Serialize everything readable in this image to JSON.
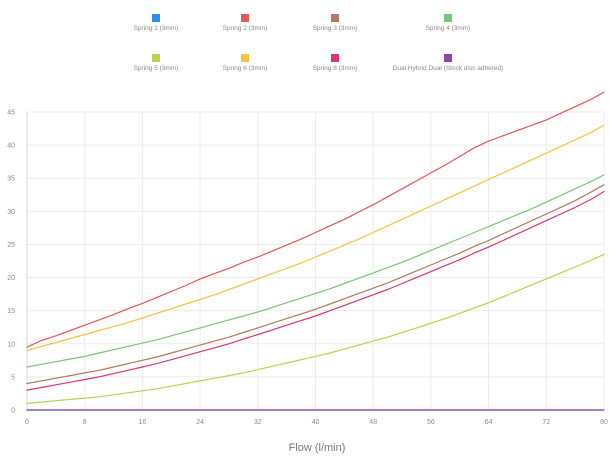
{
  "chart_data": {
    "type": "line",
    "title": "",
    "xlabel": "Flow (l/min)",
    "ylabel": "",
    "xlim": [
      0,
      80
    ],
    "ylim": [
      0,
      45
    ],
    "x_ticks": [
      0,
      8,
      16,
      24,
      32,
      40,
      48,
      56,
      64,
      72,
      80
    ],
    "y_ticks": [
      0,
      5,
      10,
      15,
      20,
      25,
      30,
      35,
      40,
      45
    ],
    "grid": true,
    "legend_position": "top",
    "x": [
      0,
      2,
      4,
      6,
      8,
      10,
      12,
      14,
      16,
      18,
      20,
      22,
      24,
      26,
      28,
      30,
      32,
      34,
      36,
      38,
      40,
      42,
      44,
      46,
      48,
      50,
      52,
      54,
      56,
      58,
      60,
      62,
      64,
      66,
      68,
      70,
      72,
      74,
      76,
      78,
      80
    ],
    "series": [
      {
        "name": "Spring 1 (3mm)",
        "color": "#2f8fe8",
        "values": [
          0.0,
          0.0,
          0.0,
          0.0,
          0.0,
          0.0,
          0.0,
          0.0,
          0.0,
          0.0,
          0.0,
          0.0,
          0.0,
          0.0,
          0.0,
          0.0,
          0.0,
          0.0,
          0.0,
          0.0,
          0.0,
          0.0,
          0.0,
          0.0,
          0.0,
          0.0,
          0.0,
          0.0,
          0.0,
          0.0,
          0.0,
          0.0,
          0.0,
          0.0,
          0.0,
          0.0,
          0.0,
          0.0,
          0.0,
          0.0,
          0.0
        ]
      },
      {
        "name": "Spring 2 (3mm)",
        "color": "#e8545a",
        "values": [
          9.5,
          10.5,
          11.2,
          12.0,
          12.8,
          13.6,
          14.4,
          15.3,
          16.1,
          17.0,
          17.9,
          18.8,
          19.8,
          20.6,
          21.4,
          22.3,
          23.1,
          24.0,
          24.9,
          25.8,
          26.8,
          27.8,
          28.8,
          29.9,
          31.0,
          32.2,
          33.4,
          34.6,
          35.8,
          37.0,
          38.3,
          39.6,
          40.6,
          41.4,
          42.2,
          43.0,
          43.8,
          44.8,
          45.8,
          46.8,
          48.0
        ]
      },
      {
        "name": "Spring 3 (3mm)",
        "color": "#b27a60",
        "values": [
          4.0,
          4.4,
          4.8,
          5.2,
          5.6,
          6.0,
          6.5,
          7.0,
          7.5,
          8.0,
          8.6,
          9.2,
          9.8,
          10.4,
          11.0,
          11.7,
          12.4,
          13.1,
          13.8,
          14.5,
          15.2,
          16.0,
          16.8,
          17.6,
          18.4,
          19.2,
          20.1,
          21.0,
          21.9,
          22.8,
          23.7,
          24.7,
          25.6,
          26.6,
          27.6,
          28.6,
          29.6,
          30.6,
          31.6,
          32.8,
          34.0
        ]
      },
      {
        "name": "Spring 4 (3mm)",
        "color": "#7cc576",
        "values": [
          6.5,
          6.9,
          7.3,
          7.7,
          8.1,
          8.6,
          9.1,
          9.6,
          10.1,
          10.6,
          11.2,
          11.8,
          12.4,
          13.0,
          13.6,
          14.2,
          14.8,
          15.5,
          16.2,
          16.9,
          17.6,
          18.3,
          19.1,
          19.9,
          20.7,
          21.5,
          22.3,
          23.2,
          24.1,
          25.0,
          25.9,
          26.8,
          27.7,
          28.6,
          29.5,
          30.4,
          31.4,
          32.4,
          33.4,
          34.4,
          35.5
        ]
      },
      {
        "name": "Spring 5 (3mm)",
        "color": "#b8d44a",
        "values": [
          1.0,
          1.2,
          1.4,
          1.6,
          1.8,
          2.0,
          2.3,
          2.6,
          2.9,
          3.2,
          3.6,
          4.0,
          4.4,
          4.8,
          5.2,
          5.6,
          6.1,
          6.6,
          7.1,
          7.6,
          8.1,
          8.6,
          9.2,
          9.8,
          10.4,
          11.0,
          11.7,
          12.4,
          13.1,
          13.8,
          14.6,
          15.4,
          16.2,
          17.1,
          18.0,
          18.9,
          19.8,
          20.7,
          21.6,
          22.5,
          23.5
        ]
      },
      {
        "name": "Spring 6 (3mm)",
        "color": "#f5c43d",
        "values": [
          9.0,
          9.6,
          10.2,
          10.8,
          11.4,
          12.0,
          12.6,
          13.2,
          13.9,
          14.6,
          15.3,
          16.0,
          16.7,
          17.4,
          18.2,
          19.0,
          19.8,
          20.6,
          21.4,
          22.2,
          23.1,
          24.0,
          24.9,
          25.8,
          26.8,
          27.8,
          28.8,
          29.8,
          30.8,
          31.8,
          32.8,
          33.8,
          34.8,
          35.8,
          36.8,
          37.8,
          38.8,
          39.8,
          40.8,
          41.8,
          43.0
        ]
      },
      {
        "name": "Spring 8 (3mm)",
        "color": "#d8357a",
        "values": [
          3.0,
          3.4,
          3.8,
          4.2,
          4.6,
          5.0,
          5.5,
          6.0,
          6.5,
          7.0,
          7.6,
          8.2,
          8.8,
          9.4,
          10.0,
          10.7,
          11.4,
          12.1,
          12.8,
          13.5,
          14.2,
          15.0,
          15.8,
          16.6,
          17.4,
          18.2,
          19.1,
          20.0,
          20.9,
          21.8,
          22.7,
          23.7,
          24.6,
          25.6,
          26.6,
          27.6,
          28.6,
          29.6,
          30.6,
          31.7,
          33.0
        ]
      },
      {
        "name": "Dual Hybrid Dual (Stock disc adhered)",
        "color": "#8e44ad",
        "values": [
          0.0,
          0.0,
          0.0,
          0.0,
          0.0,
          0.0,
          0.0,
          0.0,
          0.0,
          0.0,
          0.0,
          0.0,
          0.0,
          0.0,
          0.0,
          0.0,
          0.0,
          0.0,
          0.0,
          0.0,
          0.0,
          0.0,
          0.0,
          0.0,
          0.0,
          0.0,
          0.0,
          0.0,
          0.0,
          0.0,
          0.0,
          0.0,
          0.0,
          0.0,
          0.0,
          0.0,
          0.0,
          0.0,
          0.0,
          0.0,
          0.0
        ]
      }
    ]
  }
}
